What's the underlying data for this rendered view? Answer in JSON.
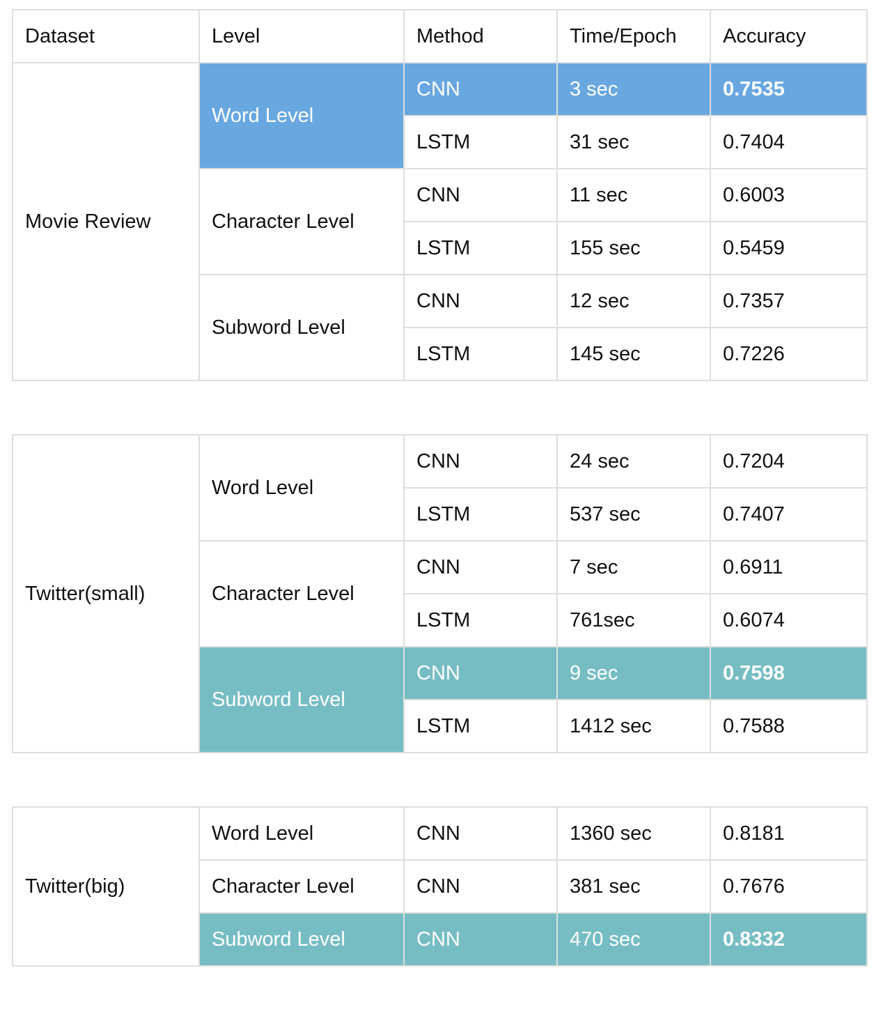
{
  "colors": {
    "blue_highlight": "#68a7e0",
    "teal_highlight": "#76bdc3",
    "grid": "#dedede"
  },
  "header": {
    "dataset": "Dataset",
    "level": "Level",
    "method": "Method",
    "time": "Time/Epoch",
    "accuracy": "Accuracy"
  },
  "movie_review": {
    "name": "Movie Review",
    "word": {
      "label": "Word Level",
      "cnn": {
        "method": "CNN",
        "time": "3 sec",
        "acc": "0.7535"
      },
      "lstm": {
        "method": "LSTM",
        "time": "31 sec",
        "acc": "0.7404"
      }
    },
    "char": {
      "label": "Character Level",
      "cnn": {
        "method": "CNN",
        "time": "11 sec",
        "acc": "0.6003"
      },
      "lstm": {
        "method": "LSTM",
        "time": "155 sec",
        "acc": "0.5459"
      }
    },
    "sub": {
      "label": "Subword Level",
      "cnn": {
        "method": "CNN",
        "time": "12 sec",
        "acc": "0.7357"
      },
      "lstm": {
        "method": "LSTM",
        "time": "145 sec",
        "acc": "0.7226"
      }
    }
  },
  "twitter_small": {
    "name": "Twitter(small)",
    "word": {
      "label": "Word Level",
      "cnn": {
        "method": "CNN",
        "time": "24 sec",
        "acc": "0.7204"
      },
      "lstm": {
        "method": "LSTM",
        "time": "537 sec",
        "acc": "0.7407"
      }
    },
    "char": {
      "label": "Character Level",
      "cnn": {
        "method": "CNN",
        "time": "7 sec",
        "acc": "0.6911"
      },
      "lstm": {
        "method": "LSTM",
        "time": "761sec",
        "acc": "0.6074"
      }
    },
    "sub": {
      "label": "Subword Level",
      "cnn": {
        "method": "CNN",
        "time": "9 sec",
        "acc": "0.7598"
      },
      "lstm": {
        "method": "LSTM",
        "time": "1412 sec",
        "acc": "0.7588"
      }
    }
  },
  "twitter_big": {
    "name": "Twitter(big)",
    "word": {
      "label": "Word Level",
      "cnn": {
        "method": "CNN",
        "time": "1360 sec",
        "acc": "0.8181"
      }
    },
    "char": {
      "label": "Character Level",
      "cnn": {
        "method": "CNN",
        "time": "381 sec",
        "acc": "0.7676"
      }
    },
    "sub": {
      "label": "Subword Level",
      "cnn": {
        "method": "CNN",
        "time": "470 sec",
        "acc": "0.8332"
      }
    }
  }
}
